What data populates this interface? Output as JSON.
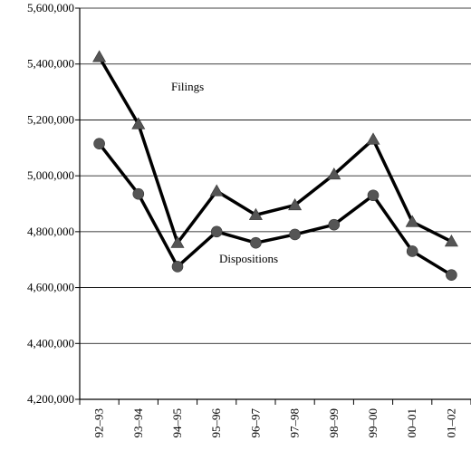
{
  "chart_data": {
    "type": "line",
    "title": "",
    "xlabel": "",
    "ylabel": "",
    "categories": [
      "92–93",
      "93–94",
      "94–95",
      "95–96",
      "96–97",
      "97–98",
      "98–99",
      "99–00",
      "00–01",
      "01–02"
    ],
    "ylim": [
      4200000,
      5600000
    ],
    "yticks": [
      4200000,
      4400000,
      4600000,
      4800000,
      5000000,
      5200000,
      5400000,
      5600000
    ],
    "ytick_labels": [
      "4,200,000",
      "4,400,000",
      "4,600,000",
      "4,800,000",
      "5,000,000",
      "5,200,000",
      "5,400,000",
      "5,600,000"
    ],
    "grid": "horizontal",
    "series": [
      {
        "name": "Filings",
        "marker": "triangle",
        "line_color": "#000000",
        "marker_color": "#555555",
        "values": [
          5425000,
          5185000,
          4760000,
          4945000,
          4860000,
          4895000,
          5005000,
          5130000,
          4835000,
          4765000
        ]
      },
      {
        "name": "Dispositions",
        "marker": "circle",
        "line_color": "#000000",
        "marker_color": "#555555",
        "values": [
          5115000,
          4935000,
          4675000,
          4800000,
          4760000,
          4790000,
          4825000,
          4930000,
          4730000,
          4645000
        ]
      }
    ]
  }
}
